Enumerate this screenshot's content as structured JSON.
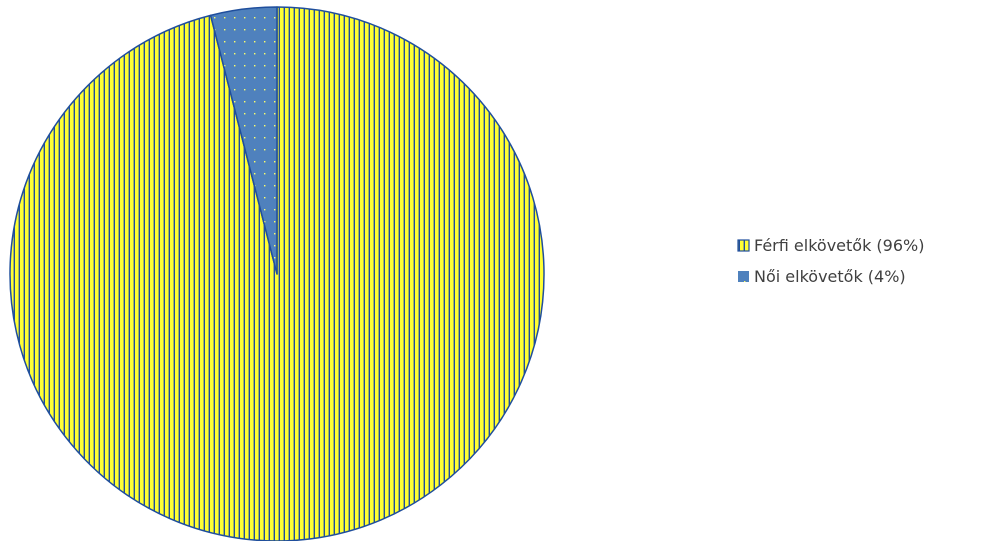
{
  "chart_data": {
    "type": "pie",
    "title": "",
    "slices": [
      {
        "label": "Férfi elkövetők (96%)",
        "value": 96,
        "color": "#ffff33",
        "pattern": "vertical-stripes",
        "stroke": "#1f4e9c"
      },
      {
        "label": "Női elkövetők (4%)",
        "value": 4,
        "color": "#4f81bd",
        "pattern": "dots",
        "stroke": "#1f4e9c"
      }
    ],
    "start_angle_deg": 0,
    "direction": "clockwise",
    "legend": {
      "position": "right"
    }
  }
}
